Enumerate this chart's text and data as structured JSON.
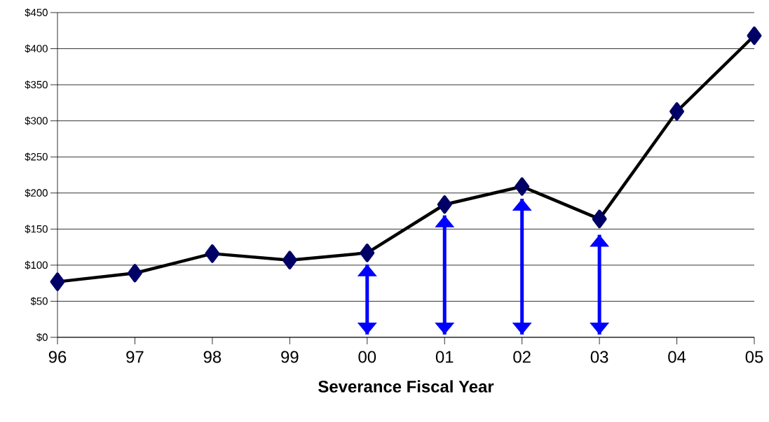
{
  "chart_data": {
    "type": "line",
    "xlabel": "Severance Fiscal Year",
    "categories": [
      "96",
      "97",
      "98",
      "99",
      "00",
      "01",
      "02",
      "03",
      "04",
      "05"
    ],
    "series": [
      {
        "color": "#000066",
        "values": [
          77,
          89,
          116,
          107,
          117,
          184,
          209,
          164,
          313,
          418
        ],
        "marker": "diamond",
        "line_style": "solid"
      },
      {
        "type": "bar",
        "color": "#0000ff",
        "base": [
          null,
          null,
          null,
          null,
          4,
          4,
          4,
          4,
          null,
          null
        ],
        "values": [
          null,
          null,
          null,
          null,
          97,
          165,
          188,
          138,
          null,
          null
        ],
        "line_style": "dotted"
      }
    ],
    "ylim": [
      0,
      450
    ],
    "yticks": [
      {
        "value": 0,
        "label": "$0"
      },
      {
        "value": 50,
        "label": "$50"
      },
      {
        "value": 100,
        "label": "$100"
      },
      {
        "value": 150,
        "label": "$150"
      },
      {
        "value": 200,
        "label": "$200"
      },
      {
        "value": 250,
        "label": "$250"
      },
      {
        "value": 300,
        "label": "$300"
      },
      {
        "value": 350,
        "label": "$350"
      },
      {
        "value": 400,
        "label": "$400"
      },
      {
        "value": 450,
        "label": "$450"
      }
    ],
    "grid": "y"
  }
}
